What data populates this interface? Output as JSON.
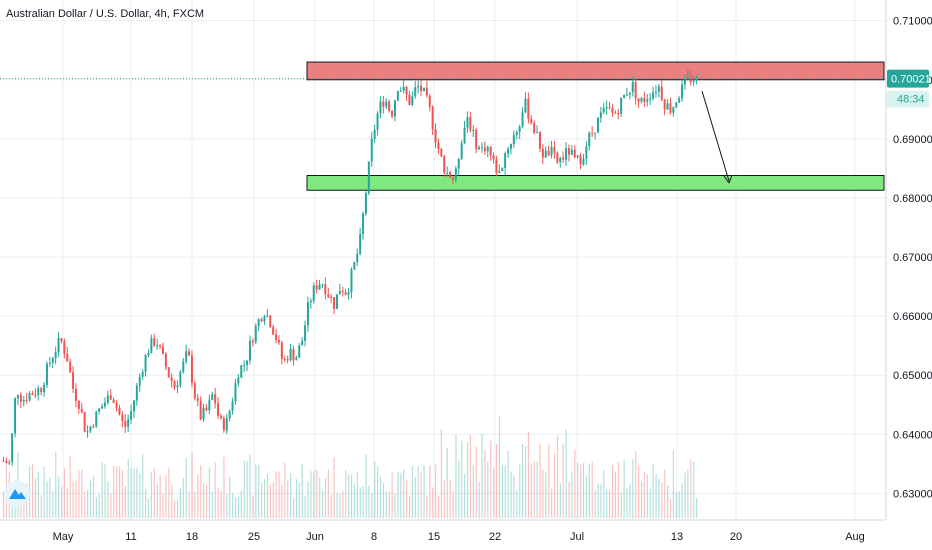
{
  "chart_data": {
    "type": "candlestick",
    "title": "Australian Dollar / U.S. Dollar, 4h, FXCM",
    "price_axis": {
      "range": [
        0.6255,
        0.7135
      ],
      "ticks": [
        "0.71000",
        "0.70000",
        "0.69000",
        "0.68000",
        "0.67000",
        "0.66000",
        "0.65000",
        "0.64000",
        "0.63000"
      ],
      "current_price_label": "0.70021",
      "countdown_label": "48:34",
      "current_price": 0.7002
    },
    "time_axis": {
      "ticks": [
        "May",
        "11",
        "18",
        "25",
        "Jun",
        "8",
        "15",
        "22",
        "Jul",
        "13",
        "20",
        "Aug"
      ]
    },
    "zones": {
      "resistance": [
        0.7,
        0.703
      ],
      "support": [
        0.6813,
        0.6838
      ]
    },
    "close_path": [
      [
        0.6355,
        0.635
      ],
      [
        0.648,
        0.6458
      ],
      [
        0.6468,
        0.6472
      ],
      [
        0.648,
        0.6515
      ],
      [
        0.654,
        0.656
      ],
      [
        0.653,
        0.6475
      ],
      [
        0.645,
        0.64
      ],
      [
        0.642,
        0.644
      ],
      [
        0.6455,
        0.647
      ],
      [
        0.644,
        0.641
      ],
      [
        0.6435,
        0.648
      ],
      [
        0.652,
        0.655
      ],
      [
        0.656,
        0.653
      ],
      [
        0.65,
        0.648
      ],
      [
        0.651,
        0.654
      ],
      [
        0.647,
        0.643
      ],
      [
        0.644,
        0.647
      ],
      [
        0.642,
        0.6415
      ],
      [
        0.646,
        0.651
      ],
      [
        0.652,
        0.656
      ],
      [
        0.659,
        0.661
      ],
      [
        0.659,
        0.656
      ],
      [
        0.652,
        0.654
      ],
      [
        0.653,
        0.656
      ],
      [
        0.662,
        0.665
      ],
      [
        0.666,
        0.664
      ],
      [
        0.662,
        0.665
      ],
      [
        0.664,
        0.668
      ],
      [
        0.672,
        0.681
      ],
      [
        0.69,
        0.695
      ],
      [
        0.697,
        0.694
      ],
      [
        0.699,
        0.698
      ],
      [
        0.696,
        0.699
      ],
      [
        0.698,
        0.695
      ],
      [
        0.69,
        0.686
      ],
      [
        0.684,
        0.683
      ],
      [
        0.69,
        0.694
      ],
      [
        0.69,
        0.688
      ],
      [
        0.689,
        0.686
      ],
      [
        0.684,
        0.688
      ],
      [
        0.69,
        0.692
      ],
      [
        0.696,
        0.693
      ],
      [
        0.69,
        0.687
      ],
      [
        0.688,
        0.686
      ],
      [
        0.687,
        0.688
      ],
      [
        0.686,
        0.687
      ],
      [
        0.69,
        0.692
      ],
      [
        0.694,
        0.695
      ],
      [
        0.694,
        0.696
      ],
      [
        0.698,
        0.699
      ],
      [
        0.696,
        0.697
      ],
      [
        0.698,
        0.699
      ],
      [
        0.696,
        0.695
      ],
      [
        0.697,
        0.699
      ],
      [
        0.7002,
        0.7002
      ]
    ],
    "volume_pattern": [
      0.22,
      0.35,
      0.18,
      0.42,
      0.27,
      0.55,
      0.31,
      0.2,
      0.47,
      0.38,
      0.25,
      0.62,
      0.33,
      0.29,
      0.51,
      0.24,
      0.4,
      0.36,
      0.58,
      0.21
    ],
    "colors": {
      "up": "#26a69a",
      "down": "#ef5350",
      "resistance_fill": "#e88080",
      "support_fill": "#7fe87f",
      "price_badge": "#26a69a",
      "dotted_line": "#26a69a",
      "grid": "#ebeef2",
      "axis_text": "#131722"
    },
    "grid": true,
    "annotation": "arrow from resistance down toward support"
  }
}
